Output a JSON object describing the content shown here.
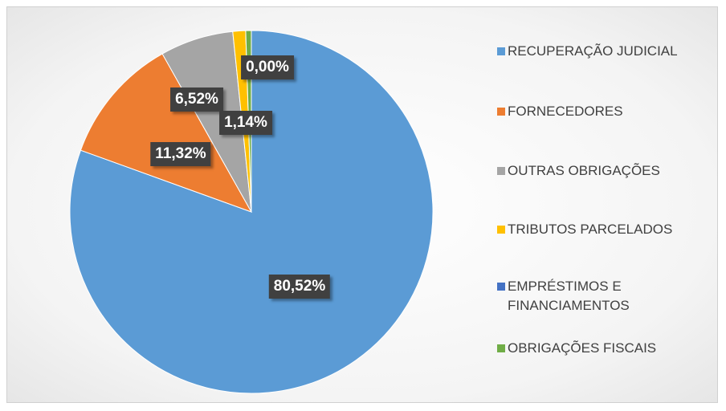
{
  "chart_data": {
    "type": "pie",
    "categories": [
      "RECUPERAÇÃO JUDICIAL",
      "FORNECEDORES",
      "OUTRAS OBRIGAÇÕES",
      "TRIBUTOS PARCELADOS",
      "EMPRÉSTIMOS E FINANCIAMENTOS",
      "OBRIGAÇÕES FISCAIS"
    ],
    "values": [
      80.52,
      11.32,
      6.52,
      1.14,
      0,
      0.5
    ],
    "value_labels": [
      "80,52%",
      "11,32%",
      "6,52%",
      "1,14%",
      "0,00%",
      null
    ],
    "colors": [
      "#5b9bd5",
      "#ed7d31",
      "#a5a5a5",
      "#ffc000",
      "#4472c4",
      "#70ad47"
    ],
    "legend": "right"
  }
}
